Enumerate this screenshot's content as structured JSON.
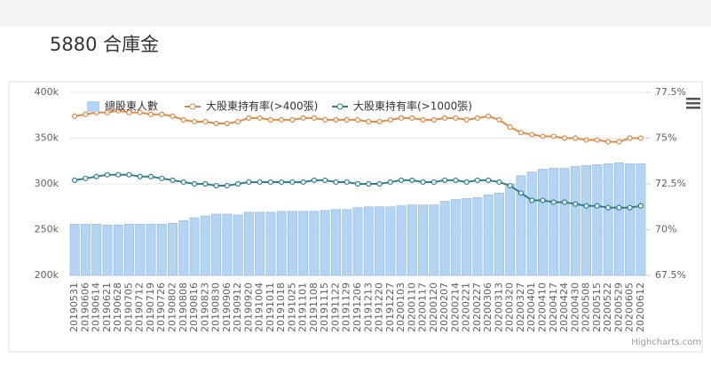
{
  "chart_data": {
    "type": "combo",
    "title": "5880 合庫金",
    "credits": "Highcharts.com",
    "categories": [
      "20190531",
      "20190606",
      "20190614",
      "20190621",
      "20190628",
      "20190705",
      "20190712",
      "20190719",
      "20190726",
      "20190802",
      "20190808",
      "20190816",
      "20190823",
      "20190830",
      "20190906",
      "20190912",
      "20190920",
      "20191004",
      "20191011",
      "20191018",
      "20191025",
      "20191101",
      "20191108",
      "20191115",
      "20191122",
      "20191129",
      "20191206",
      "20191213",
      "20191220",
      "20191227",
      "20200103",
      "20200110",
      "20200117",
      "20200120",
      "20200207",
      "20200214",
      "20200221",
      "20200227",
      "20200306",
      "20200313",
      "20200320",
      "20200327",
      "20200401",
      "20200410",
      "20200417",
      "20200424",
      "20200430",
      "20200508",
      "20200515",
      "20200522",
      "20200529",
      "20200605",
      "20200612"
    ],
    "series": [
      {
        "name": "總股東人數",
        "type": "bar",
        "color": "#b3d4f2",
        "values": [
          256000,
          256000,
          256000,
          255000,
          255000,
          256000,
          256000,
          256000,
          256000,
          257000,
          260000,
          263000,
          265000,
          267000,
          267000,
          266000,
          269000,
          269000,
          269000,
          270000,
          270000,
          270000,
          270000,
          271000,
          272000,
          272000,
          274000,
          275000,
          275000,
          275000,
          276000,
          277000,
          277000,
          277000,
          281000,
          283000,
          284000,
          285000,
          288000,
          290000,
          300000,
          309000,
          313000,
          316000,
          317000,
          317000,
          319000,
          320000,
          321000,
          322000,
          323000,
          322000,
          322000
        ]
      },
      {
        "name": "大股東持有率(>400張)",
        "type": "line",
        "axis": "y2",
        "color": "#e08a45",
        "values": [
          76.2,
          76.3,
          76.4,
          76.4,
          76.5,
          76.4,
          76.4,
          76.3,
          76.3,
          76.2,
          76.0,
          75.9,
          75.9,
          75.8,
          75.8,
          75.9,
          76.1,
          76.1,
          76.0,
          76.0,
          76.0,
          76.1,
          76.1,
          76.0,
          76.0,
          76.0,
          76.0,
          75.9,
          75.9,
          76.0,
          76.1,
          76.1,
          76.0,
          76.0,
          76.1,
          76.1,
          76.0,
          76.1,
          76.2,
          76.0,
          75.6,
          75.3,
          75.2,
          75.1,
          75.1,
          75.0,
          75.0,
          74.9,
          74.9,
          74.8,
          74.8,
          75.0,
          75.0
        ]
      },
      {
        "name": "大股東持有率(>1000張)",
        "type": "line",
        "axis": "y2",
        "color": "#2f7f8f",
        "values": [
          72.7,
          72.8,
          72.9,
          73.0,
          73.0,
          73.0,
          72.9,
          72.9,
          72.8,
          72.7,
          72.6,
          72.5,
          72.5,
          72.4,
          72.4,
          72.5,
          72.6,
          72.6,
          72.6,
          72.6,
          72.6,
          72.6,
          72.7,
          72.7,
          72.6,
          72.6,
          72.5,
          72.5,
          72.5,
          72.6,
          72.7,
          72.7,
          72.6,
          72.6,
          72.7,
          72.7,
          72.6,
          72.7,
          72.7,
          72.6,
          72.4,
          72.0,
          71.6,
          71.6,
          71.5,
          71.5,
          71.4,
          71.3,
          71.3,
          71.2,
          71.2,
          71.2,
          71.3
        ]
      }
    ],
    "ylim": [
      200000,
      400000
    ],
    "yticks": [
      {
        "value": 200000,
        "label": "200k"
      },
      {
        "value": 250000,
        "label": "250k"
      },
      {
        "value": 300000,
        "label": "300k"
      },
      {
        "value": 350000,
        "label": "350k"
      },
      {
        "value": 400000,
        "label": "400k"
      }
    ],
    "y2lim": [
      67.5,
      77.5
    ],
    "y2ticks": [
      {
        "value": 67.5,
        "label": "67.5%"
      },
      {
        "value": 70,
        "label": "70%"
      },
      {
        "value": 72.5,
        "label": "72.5%"
      },
      {
        "value": 75,
        "label": "75%"
      },
      {
        "value": 77.5,
        "label": "77.5%"
      }
    ],
    "grid": true
  }
}
